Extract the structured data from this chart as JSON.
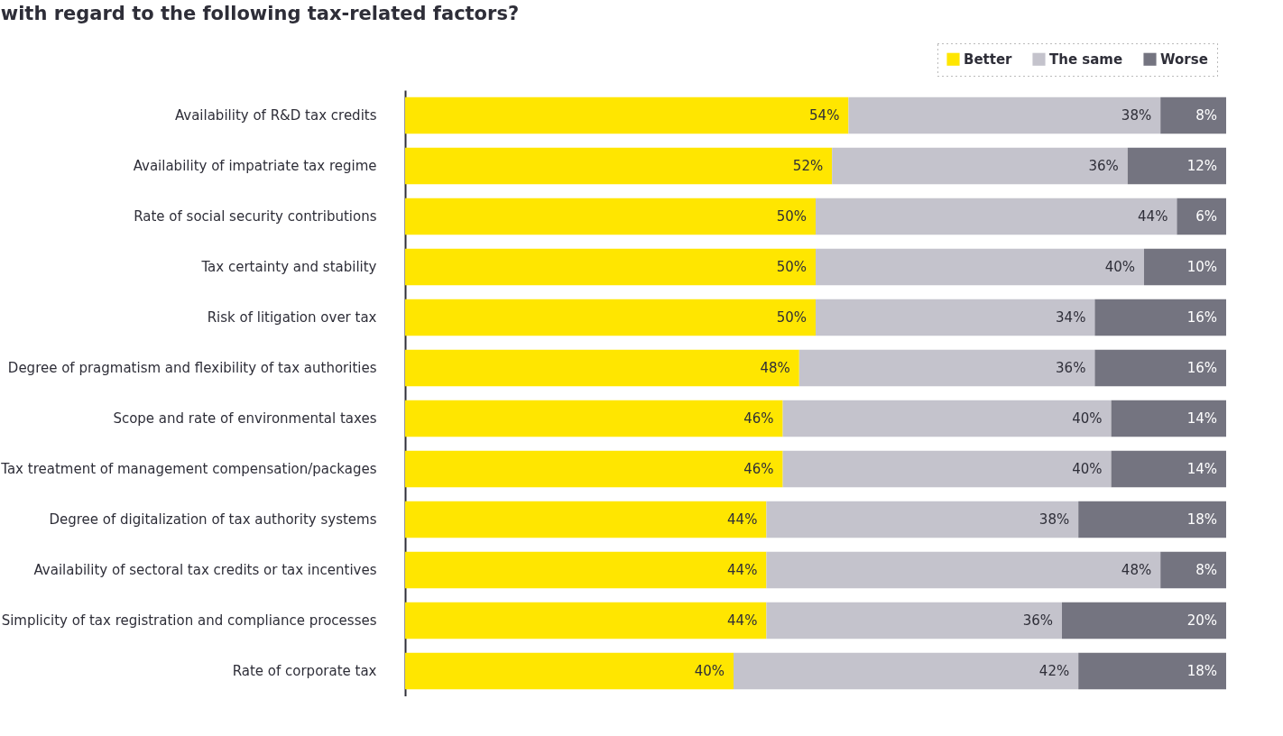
{
  "chart_data": {
    "type": "bar",
    "orientation": "horizontal",
    "stacked": true,
    "title": "with regard to the following tax-related factors?",
    "legend": "top right",
    "categories": [
      "Availability of R&D tax credits",
      "Availability of impatriate tax regime",
      "Rate of social security contributions",
      "Tax certainty and stability",
      "Risk of litigation over tax",
      "Degree of pragmatism and flexibility of tax authorities",
      "Scope and rate of environmental taxes",
      "Tax treatment of management compensation/packages",
      "Degree of digitalization of tax authority systems",
      "Availability of sectoral tax credits or tax incentives",
      "Simplicity of tax registration and compliance processes",
      "Rate of corporate tax"
    ],
    "series": [
      {
        "name": "Better",
        "color": "#ffe600",
        "values": [
          54,
          52,
          50,
          50,
          50,
          48,
          46,
          46,
          44,
          44,
          44,
          40
        ],
        "value_labels": [
          "54%",
          "52%",
          "50%",
          "50%",
          "50%",
          "48%",
          "46%",
          "46%",
          "44%",
          "44%",
          "44%",
          "40%"
        ]
      },
      {
        "name": "The same",
        "color": "#c4c3cc",
        "values": [
          38,
          36,
          44,
          40,
          34,
          36,
          40,
          40,
          38,
          48,
          36,
          42
        ],
        "value_labels": [
          "38%",
          "36%",
          "44%",
          "40%",
          "34%",
          "36%",
          "40%",
          "40%",
          "38%",
          "48%",
          "36%",
          "42%"
        ]
      },
      {
        "name": "Worse",
        "color": "#747480",
        "values": [
          8,
          12,
          6,
          10,
          16,
          16,
          14,
          14,
          18,
          8,
          20,
          18
        ],
        "value_labels": [
          "8%",
          "12%",
          "6%",
          "10%",
          "16%",
          "16%",
          "14%",
          "14%",
          "18%",
          "8%",
          "20%",
          "18%"
        ]
      }
    ]
  }
}
